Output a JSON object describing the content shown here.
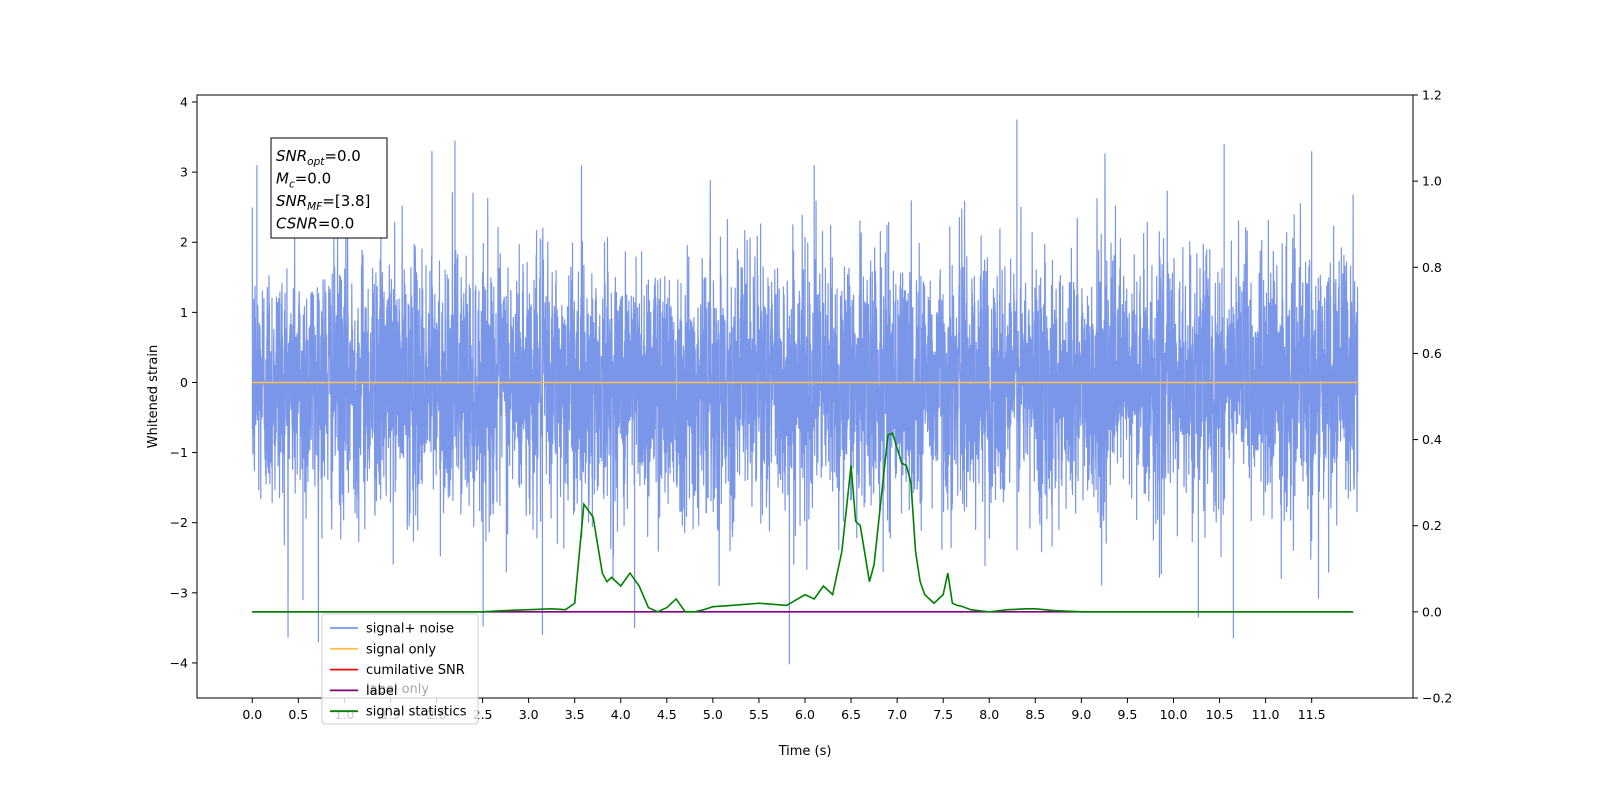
{
  "chart_data": {
    "type": "line",
    "title": "",
    "xlabel": "Time (s)",
    "ylabel": "Whitened strain",
    "xlim": [
      -0.6,
      12.6
    ],
    "ylim": [
      -4.5,
      4.1
    ],
    "y2lim": [
      -0.2,
      1.2
    ],
    "xticks": [
      0.0,
      0.5,
      1.0,
      1.5,
      2.0,
      2.5,
      3.0,
      3.5,
      4.0,
      4.5,
      5.0,
      5.5,
      6.0,
      6.5,
      7.0,
      7.5,
      8.0,
      8.5,
      9.0,
      9.5,
      10.0,
      10.5,
      11.0,
      11.5
    ],
    "xtick_labels": [
      "0.0",
      "0.5",
      "1.0",
      "1.5",
      "2.0",
      "2.5",
      "3.0",
      "3.5",
      "4.0",
      "4.5",
      "5.0",
      "5.5",
      "6.0",
      "6.5",
      "7.0",
      "7.5",
      "8.0",
      "8.5",
      "9.0",
      "9.5",
      "10.0",
      "10.5",
      "11.0",
      "11.5"
    ],
    "yticks": [
      -4,
      -3,
      -2,
      -1,
      0,
      1,
      2,
      3,
      4
    ],
    "ytick_labels": [
      "−4",
      "−3",
      "−2",
      "−1",
      "0",
      "1",
      "2",
      "3",
      "4"
    ],
    "y2ticks": [
      -0.2,
      0.0,
      0.2,
      0.4,
      0.6,
      0.8,
      1.0,
      1.2
    ],
    "y2tick_labels": [
      "−0.2",
      "0.0",
      "0.2",
      "0.4",
      "0.6",
      "0.8",
      "1.0",
      "1.2"
    ],
    "grid": false,
    "legend_position": "lower-left",
    "noise": {
      "t_start": 0.0,
      "t_end": 12.0,
      "mean": 0.0,
      "std": 0.9,
      "max": 3.7,
      "min": -4.0,
      "color": "#6f8fe6"
    },
    "series": [
      {
        "name": "signal+ noise",
        "axis": "left",
        "color": "#7a96e8"
      },
      {
        "name": "signal only",
        "axis": "left",
        "color": "#ffc04d",
        "x": [
          0.0,
          12.0
        ],
        "y": [
          0.0,
          0.0
        ]
      },
      {
        "name": "cumilative SNR",
        "axis": "left",
        "color": "#ff0000",
        "x": [],
        "y": []
      },
      {
        "name": "label",
        "axis": "right",
        "color": "#800080",
        "x": [
          0.0,
          11.95
        ],
        "y": [
          0.0,
          0.0
        ]
      },
      {
        "name": "signal statistics",
        "axis": "right",
        "color": "#008000",
        "x": [
          0.0,
          2.5,
          2.75,
          3.0,
          3.25,
          3.4,
          3.5,
          3.6,
          3.7,
          3.8,
          3.85,
          3.9,
          4.0,
          4.1,
          4.2,
          4.3,
          4.4,
          4.5,
          4.6,
          4.7,
          4.8,
          4.9,
          5.0,
          5.2,
          5.5,
          5.8,
          6.0,
          6.1,
          6.2,
          6.3,
          6.4,
          6.5,
          6.55,
          6.6,
          6.7,
          6.75,
          6.85,
          6.9,
          6.95,
          7.0,
          7.05,
          7.1,
          7.15,
          7.2,
          7.25,
          7.3,
          7.4,
          7.5,
          7.55,
          7.6,
          7.65,
          7.7,
          7.8,
          8.0,
          8.2,
          8.4,
          8.5,
          8.7,
          9.0,
          11.95
        ],
        "y": [
          0.0,
          0.0,
          0.003,
          0.005,
          0.007,
          0.005,
          0.02,
          0.25,
          0.22,
          0.09,
          0.07,
          0.08,
          0.06,
          0.09,
          0.06,
          0.01,
          0.0,
          0.01,
          0.03,
          0.0,
          0.0,
          0.005,
          0.012,
          0.015,
          0.02,
          0.015,
          0.04,
          0.03,
          0.06,
          0.04,
          0.14,
          0.34,
          0.21,
          0.2,
          0.07,
          0.11,
          0.31,
          0.41,
          0.415,
          0.38,
          0.345,
          0.34,
          0.3,
          0.14,
          0.07,
          0.04,
          0.02,
          0.04,
          0.09,
          0.02,
          0.015,
          0.013,
          0.005,
          0.0,
          0.005,
          0.007,
          0.007,
          0.003,
          0.0,
          0.0
        ]
      },
      {
        "name": "label only",
        "axis": "right",
        "color": "#800080",
        "legend_only": true
      }
    ],
    "legend": [
      "signal+ noise",
      "signal only",
      "cumilative SNR",
      "label",
      "signal statistics"
    ],
    "legend_hidden_entry": "label only",
    "annotation": {
      "lines": [
        {
          "base": "SNR",
          "sub": "opt",
          "value": "=0.0"
        },
        {
          "base": "M",
          "sub": "c",
          "value": "=0.0"
        },
        {
          "base": "SNR",
          "sub": "MF",
          "value": "=[3.8]"
        },
        {
          "base": "CSNR",
          "sub": "",
          "value": "=0.0"
        }
      ]
    }
  }
}
